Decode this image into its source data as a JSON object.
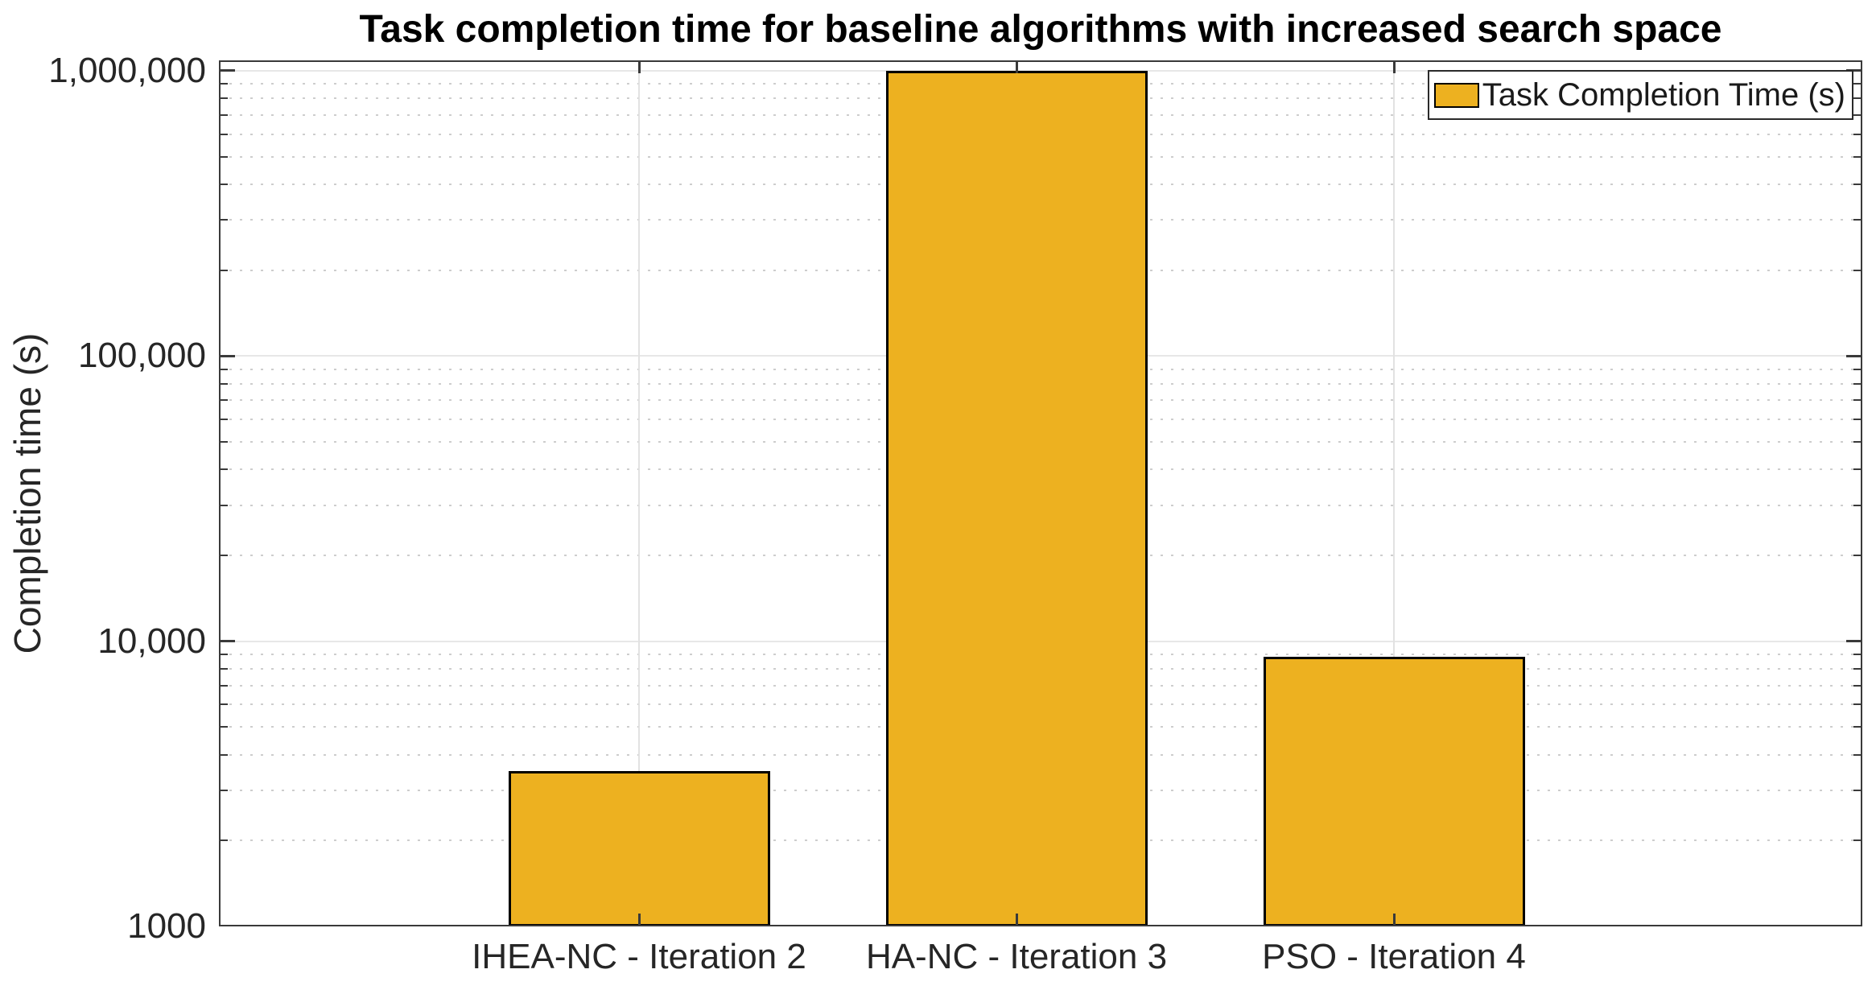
{
  "chart_data": {
    "type": "bar",
    "title": "Task completion time for baseline algorithms with increased search space",
    "categories": [
      "IHEA-NC - Iteration 2",
      "HA-NC - Iteration 3",
      "PSO - Iteration 4"
    ],
    "series": [
      {
        "name": "Task Completion Time (s)",
        "values": [
          3500,
          1000000,
          8800
        ]
      }
    ],
    "xlabel": "",
    "ylabel": "Completion time (s)",
    "yscale": "log",
    "ylim": [
      1000,
      1088000
    ],
    "yticks": [
      {
        "value": 1000,
        "label": "1000"
      },
      {
        "value": 10000,
        "label": "10,000"
      },
      {
        "value": 100000,
        "label": "100,000"
      },
      {
        "value": 1000000,
        "label": "1,000,000"
      }
    ],
    "grid": {
      "major": "solid",
      "minor": "dotted",
      "x_gridlines_at_bars": true
    },
    "legend": {
      "position": "top-right",
      "label": "Task Completion Time (s)"
    },
    "colors": {
      "bar_fill": "#EDB120",
      "bar_edge": "#000000",
      "axis": "#3A3A3A",
      "grid_major": "#E7E7E7",
      "grid_minor": "#CDCDCD",
      "text": "#262626",
      "background": "#FFFFFF"
    }
  }
}
